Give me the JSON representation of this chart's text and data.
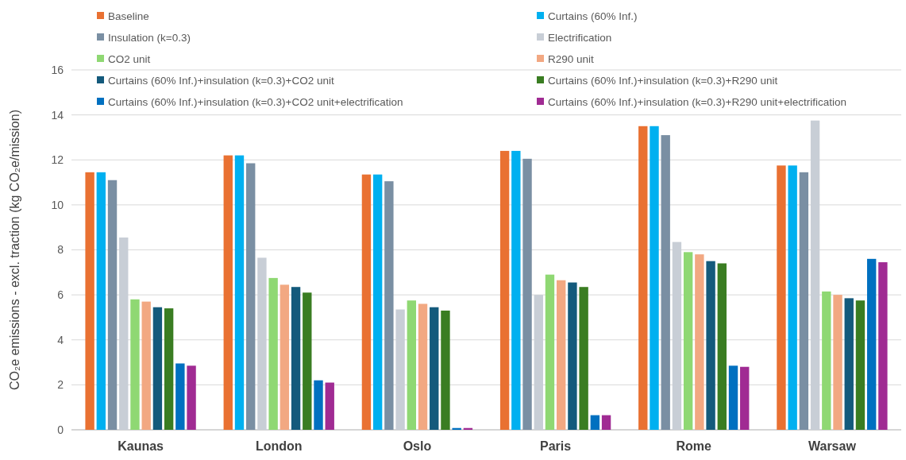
{
  "chart_data": {
    "type": "bar",
    "ylabel": "CO₂e emissions - excl. traction (kg CO₂e/mission)",
    "categories": [
      "Kaunas",
      "London",
      "Oslo",
      "Paris",
      "Rome",
      "Warsaw"
    ],
    "series": [
      {
        "name": "Baseline",
        "color": "#e97132",
        "values": [
          11.45,
          12.2,
          11.35,
          12.4,
          13.5,
          11.75
        ]
      },
      {
        "name": "Curtains (60% Inf.)",
        "color": "#00b0f0",
        "values": [
          11.45,
          12.2,
          11.35,
          12.4,
          13.5,
          11.75
        ]
      },
      {
        "name": "Insulation (k=0.3)",
        "color": "#7a8fa3",
        "values": [
          11.1,
          11.85,
          11.05,
          12.05,
          13.1,
          11.45
        ]
      },
      {
        "name": "Electrification",
        "color": "#c8ced6",
        "values": [
          8.55,
          7.65,
          5.35,
          6.0,
          8.35,
          13.75
        ]
      },
      {
        "name": "CO2 unit",
        "color": "#8fd873",
        "values": [
          5.8,
          6.75,
          5.75,
          6.9,
          7.9,
          6.15
        ]
      },
      {
        "name": "R290 unit",
        "color": "#f2a882",
        "values": [
          5.7,
          6.45,
          5.6,
          6.65,
          7.8,
          6.0
        ]
      },
      {
        "name": "Curtains (60% Inf.)+insulation (k=0.3)+CO2 unit",
        "color": "#145a7c",
        "values": [
          5.45,
          6.35,
          5.45,
          6.55,
          7.5,
          5.85
        ]
      },
      {
        "name": "Curtains (60% Inf.)+insulation (k=0.3)+R290 unit",
        "color": "#3a7d22",
        "values": [
          5.4,
          6.1,
          5.3,
          6.35,
          7.4,
          5.75
        ]
      },
      {
        "name": "Curtains (60% Inf.)+insulation (k=0.3)+CO2 unit+electrification",
        "color": "#0070c0",
        "values": [
          2.95,
          2.2,
          0.08,
          0.65,
          2.85,
          7.6
        ]
      },
      {
        "name": "Curtains (60% Inf.)+insulation (k=0.3)+R290 unit+electrification",
        "color": "#a02b93",
        "values": [
          2.85,
          2.1,
          0.08,
          0.65,
          2.8,
          7.45
        ]
      }
    ],
    "ylim": [
      0,
      16
    ],
    "yticks": [
      0,
      2,
      4,
      6,
      8,
      10,
      12,
      14,
      16
    ],
    "grid": "y",
    "legend": "top"
  }
}
